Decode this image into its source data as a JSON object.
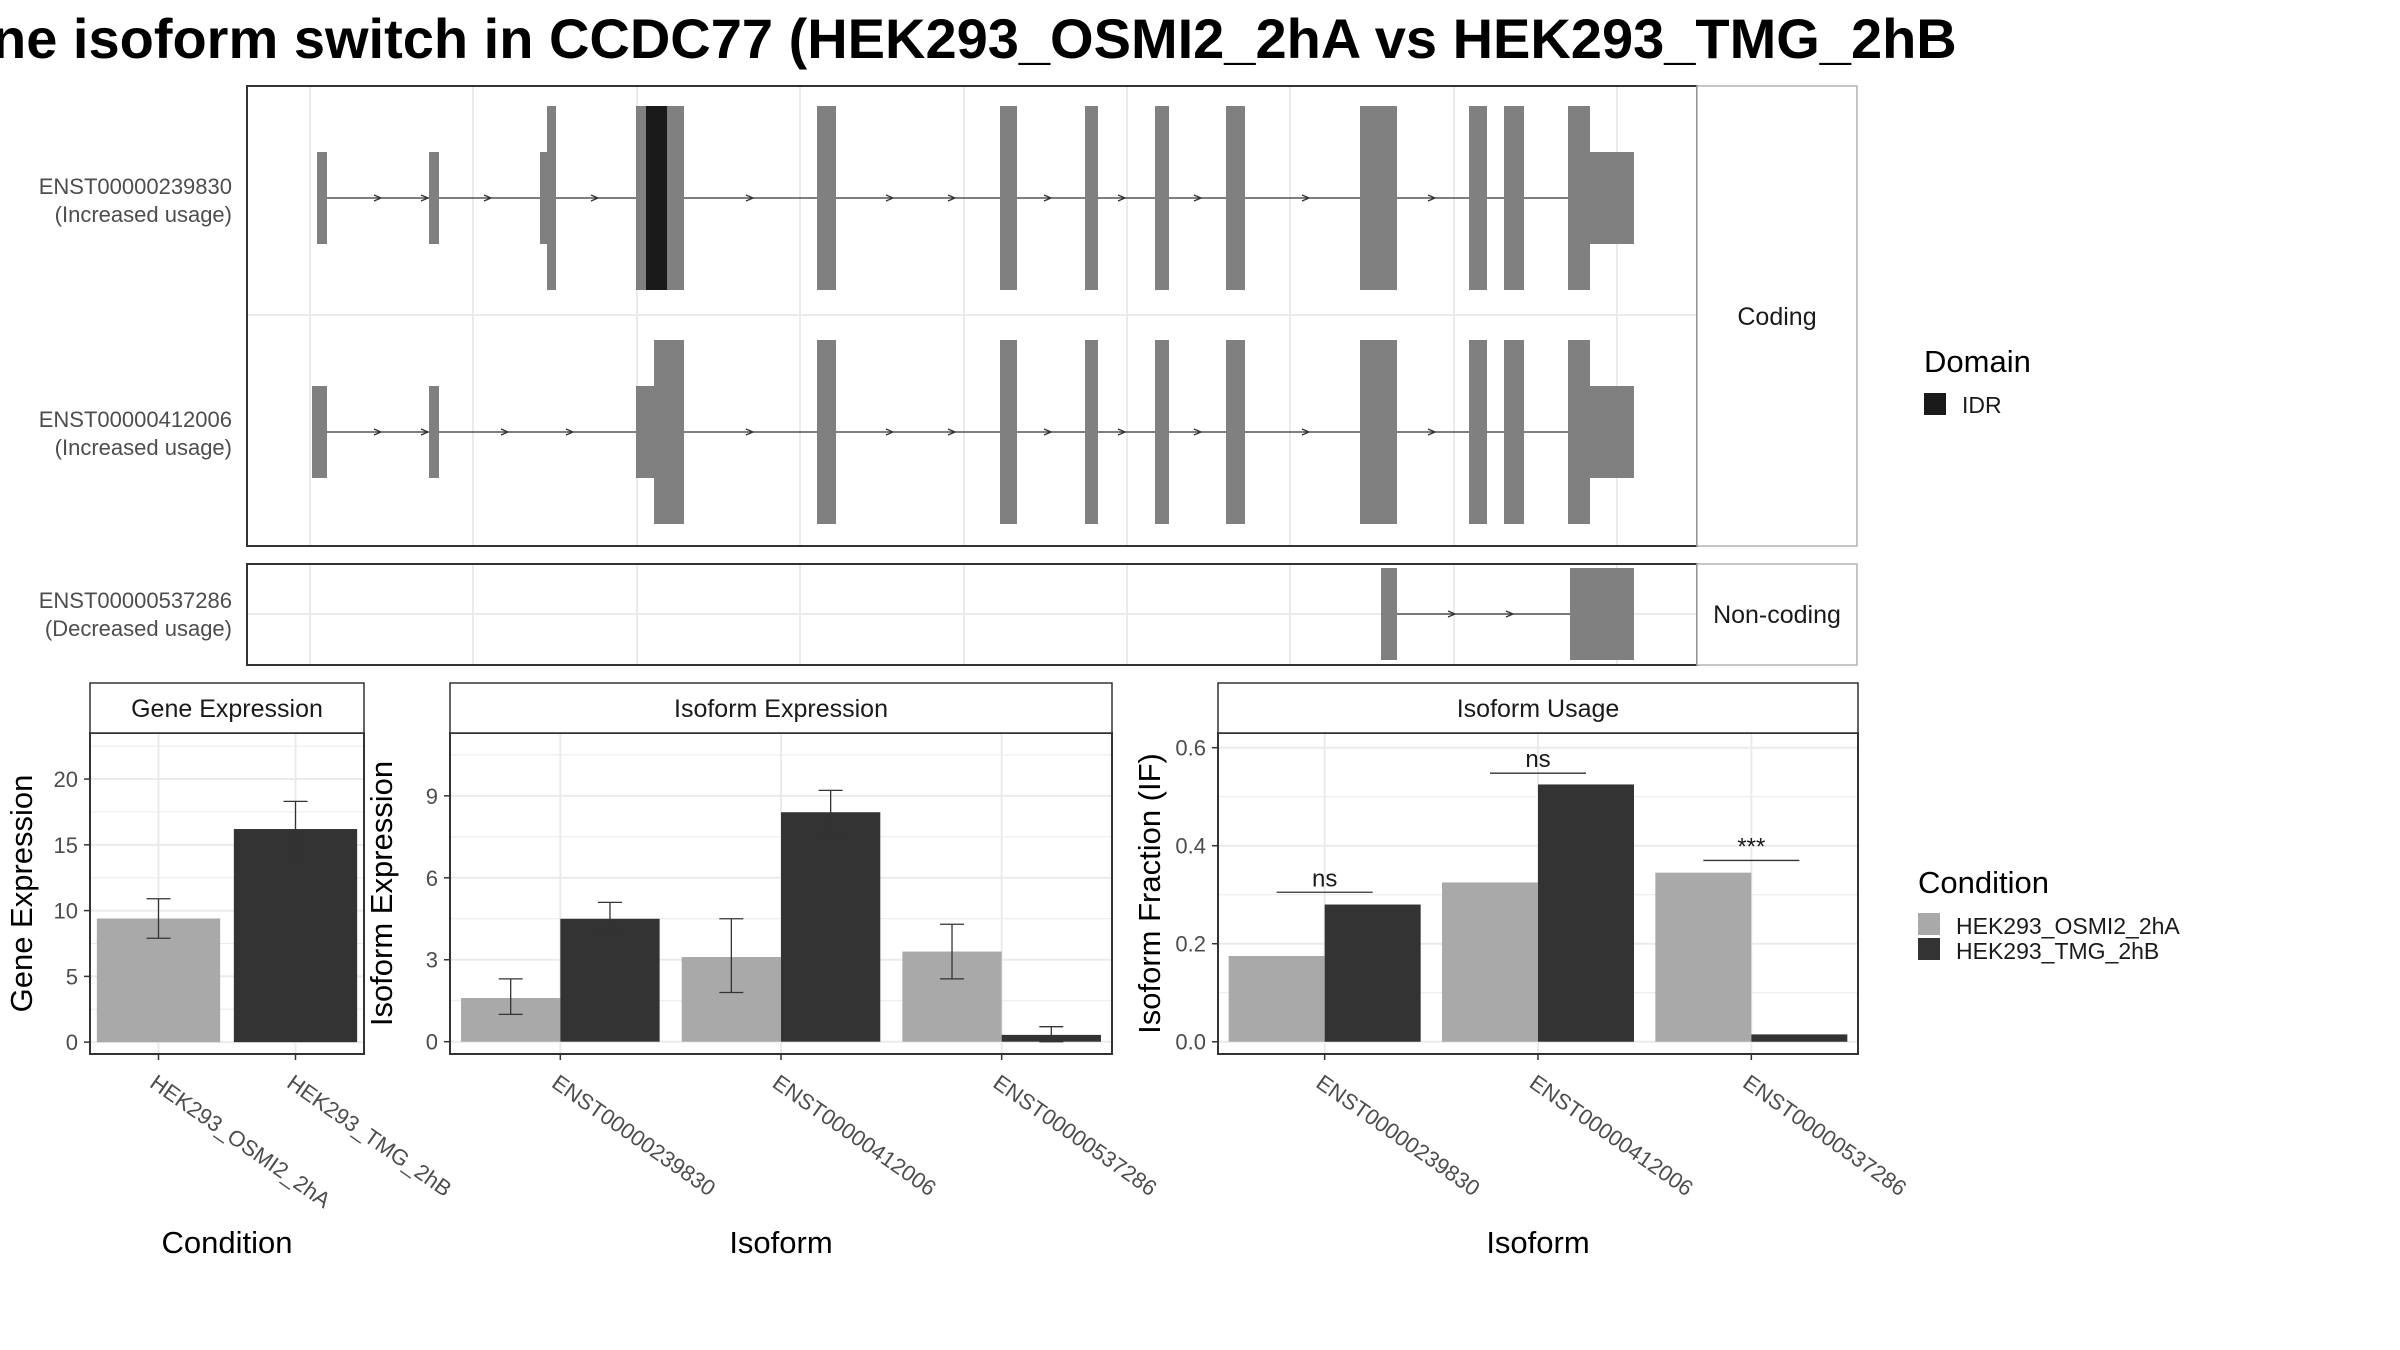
{
  "title": "ne isoform switch in CCDC77 (HEK293_OSMI2_2hA vs HEK293_TMG_2hB",
  "colors": {
    "exon": "#808080",
    "idr": "#1a1a1a",
    "condition_a": "#a9a9a9",
    "condition_b": "#333333",
    "grid": "#ebebeb",
    "panel_border": "#333333",
    "strip_border": "#b3b3b3"
  },
  "structure": {
    "groups": [
      {
        "label": "Coding",
        "transcripts": [
          "ENST00000239830",
          "ENST00000412006"
        ]
      },
      {
        "label": "Non-coding",
        "transcripts": [
          "ENST00000537286"
        ]
      }
    ],
    "transcripts": [
      {
        "id": "ENST00000239830",
        "usage": "(Increased usage)"
      },
      {
        "id": "ENST00000412006",
        "usage": "(Increased usage)"
      },
      {
        "id": "ENST00000537286",
        "usage": "(Decreased usage)"
      }
    ],
    "legend": {
      "title": "Domain",
      "items": [
        {
          "label": "IDR",
          "color": "#1a1a1a"
        }
      ]
    }
  },
  "chart_data": [
    {
      "type": "bar",
      "title": "Gene Expression",
      "xlabel": "Condition",
      "ylabel": "Gene Expression",
      "categories": [
        "HEK293_OSMI2_2hA",
        "HEK293_TMG_2hB"
      ],
      "values": [
        9.4,
        16.2
      ],
      "error_low": [
        7.9,
        14.1
      ],
      "error_high": [
        10.9,
        18.3
      ],
      "ylim": [
        -0.9,
        23.5
      ],
      "yticks": [
        0,
        5,
        10,
        15,
        20
      ],
      "grid": true
    },
    {
      "type": "bar",
      "title": "Isoform Expression",
      "xlabel": "Isoform",
      "ylabel": "Isoform Expression",
      "categories": [
        "ENST00000239830",
        "ENST00000412006",
        "ENST00000537286"
      ],
      "series": [
        {
          "name": "HEK293_OSMI2_2hA",
          "values": [
            1.6,
            3.1,
            3.3
          ],
          "error_low": [
            1.0,
            1.8,
            2.3
          ],
          "error_high": [
            2.3,
            4.5,
            4.3
          ]
        },
        {
          "name": "HEK293_TMG_2hB",
          "values": [
            4.5,
            8.4,
            0.25
          ],
          "error_low": [
            4.0,
            7.6,
            0.0
          ],
          "error_high": [
            5.1,
            9.2,
            0.55
          ]
        }
      ],
      "ylim": [
        -0.45,
        11.3
      ],
      "yticks": [
        0,
        3,
        6,
        9
      ],
      "grid": true
    },
    {
      "type": "bar",
      "title": "Isoform Usage",
      "xlabel": "Isoform",
      "ylabel": "Isoform Fraction (IF)",
      "categories": [
        "ENST00000239830",
        "ENST00000412006",
        "ENST00000537286"
      ],
      "series": [
        {
          "name": "HEK293_OSMI2_2hA",
          "values": [
            0.175,
            0.325,
            0.345
          ]
        },
        {
          "name": "HEK293_TMG_2hB",
          "values": [
            0.28,
            0.525,
            0.015
          ]
        }
      ],
      "annotations": [
        "ns",
        "ns",
        "***"
      ],
      "annotation_y": [
        0.305,
        0.548,
        0.37
      ],
      "ylim": [
        -0.025,
        0.63
      ],
      "yticks": [
        "0.0",
        "0.2",
        "0.4",
        "0.6"
      ],
      "grid": true,
      "legend": {
        "title": "Condition",
        "items": [
          "HEK293_OSMI2_2hA",
          "HEK293_TMG_2hB"
        ]
      }
    }
  ]
}
